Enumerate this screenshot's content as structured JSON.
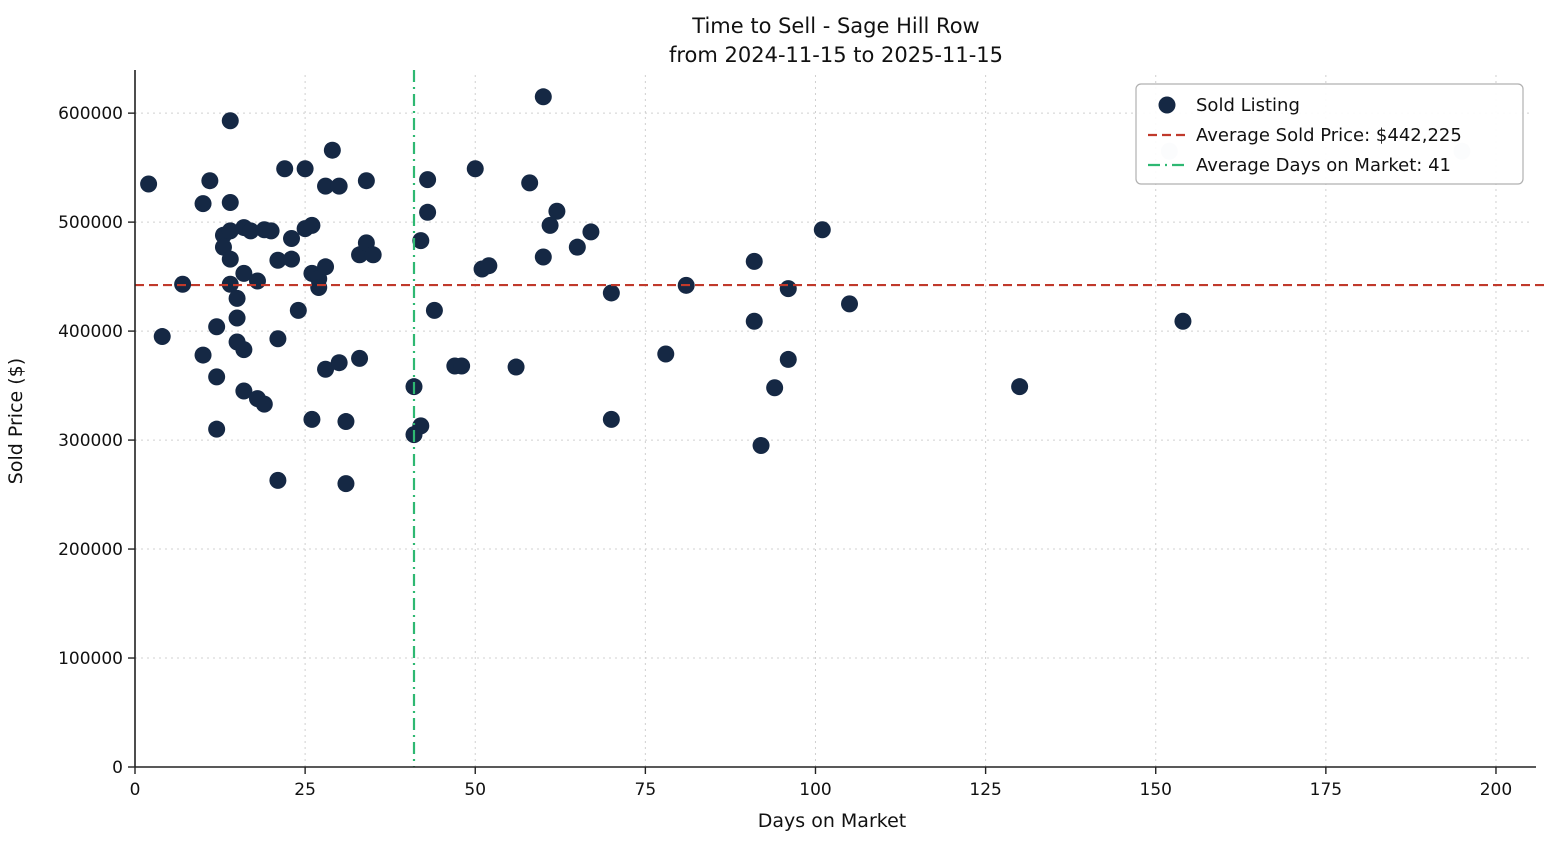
{
  "chart_data": {
    "type": "scatter",
    "title": "Time to Sell - Sage Hill Row",
    "subtitle": "from 2024-11-15 to 2025-11-15",
    "xlabel": "Days on Market",
    "ylabel": "Sold Price ($)",
    "xlim": [
      0,
      205
    ],
    "ylim": [
      0,
      635000
    ],
    "xticks": [
      0,
      25,
      50,
      75,
      100,
      125,
      150,
      175,
      200
    ],
    "yticks": [
      0,
      100000,
      200000,
      300000,
      400000,
      500000,
      600000
    ],
    "grid": true,
    "legend_position": "upper right",
    "colors": {
      "point": "#152844",
      "muted_point": "#cdd3de",
      "avg_price_line": "#c0392b",
      "avg_days_line": "#2eb872",
      "grid": "#d0d0d0",
      "spine": "#222222",
      "legend_border": "#b0b0b0"
    },
    "series": [
      {
        "name": "Sold Listing",
        "type": "scatter",
        "color": "#152844",
        "show_in_legend": true,
        "points": [
          [
            2,
            535000
          ],
          [
            4,
            395000
          ],
          [
            7,
            443000
          ],
          [
            10,
            517000
          ],
          [
            10,
            378000
          ],
          [
            11,
            538000
          ],
          [
            12,
            310000
          ],
          [
            12,
            404000
          ],
          [
            12,
            358000
          ],
          [
            13,
            488000
          ],
          [
            13,
            477000
          ],
          [
            14,
            593000
          ],
          [
            14,
            518000
          ],
          [
            14,
            492000
          ],
          [
            14,
            466000
          ],
          [
            14,
            443000
          ],
          [
            15,
            430000
          ],
          [
            15,
            412000
          ],
          [
            15,
            390000
          ],
          [
            16,
            495000
          ],
          [
            16,
            453000
          ],
          [
            16,
            383000
          ],
          [
            16,
            345000
          ],
          [
            17,
            492000
          ],
          [
            18,
            446000
          ],
          [
            18,
            338000
          ],
          [
            19,
            493000
          ],
          [
            19,
            333000
          ],
          [
            20,
            492000
          ],
          [
            21,
            465000
          ],
          [
            21,
            393000
          ],
          [
            21,
            263000
          ],
          [
            22,
            549000
          ],
          [
            23,
            485000
          ],
          [
            23,
            466000
          ],
          [
            24,
            419000
          ],
          [
            25,
            549000
          ],
          [
            25,
            494000
          ],
          [
            26,
            497000
          ],
          [
            26,
            453000
          ],
          [
            26,
            319000
          ],
          [
            27,
            448000
          ],
          [
            27,
            440000
          ],
          [
            28,
            533000
          ],
          [
            28,
            459000
          ],
          [
            28,
            365000
          ],
          [
            29,
            566000
          ],
          [
            30,
            533000
          ],
          [
            30,
            371000
          ],
          [
            31,
            317000
          ],
          [
            31,
            260000
          ],
          [
            33,
            470000
          ],
          [
            33,
            375000
          ],
          [
            34,
            538000
          ],
          [
            34,
            481000
          ],
          [
            35,
            470000
          ],
          [
            41,
            349000
          ],
          [
            41,
            305000
          ],
          [
            42,
            313000
          ],
          [
            42,
            483000
          ],
          [
            43,
            539000
          ],
          [
            43,
            509000
          ],
          [
            44,
            419000
          ],
          [
            47,
            368000
          ],
          [
            48,
            368000
          ],
          [
            50,
            549000
          ],
          [
            51,
            457000
          ],
          [
            52,
            460000
          ],
          [
            56,
            367000
          ],
          [
            58,
            536000
          ],
          [
            60,
            615000
          ],
          [
            60,
            468000
          ],
          [
            61,
            497000
          ],
          [
            62,
            510000
          ],
          [
            65,
            477000
          ],
          [
            67,
            491000
          ],
          [
            70,
            435000
          ],
          [
            70,
            319000
          ],
          [
            78,
            379000
          ],
          [
            81,
            442000
          ],
          [
            91,
            464000
          ],
          [
            91,
            409000
          ],
          [
            92,
            295000
          ],
          [
            94,
            348000
          ],
          [
            96,
            439000
          ],
          [
            96,
            374000
          ],
          [
            101,
            493000
          ],
          [
            105,
            425000
          ],
          [
            130,
            349000
          ],
          [
            154,
            409000
          ]
        ]
      },
      {
        "name": "",
        "type": "scatter",
        "color": "#cdd3de",
        "show_in_legend": false,
        "points": [
          [
            152,
            565000
          ],
          [
            195,
            565000
          ]
        ]
      },
      {
        "name": "Average Sold Price: $442,225",
        "type": "hline",
        "y": 442225,
        "color": "#c0392b",
        "linestyle": "dashed",
        "show_in_legend": true
      },
      {
        "name": "Average Days on Market: 41",
        "type": "vline",
        "x": 41,
        "color": "#2eb872",
        "linestyle": "dashdot",
        "show_in_legend": true
      }
    ]
  }
}
